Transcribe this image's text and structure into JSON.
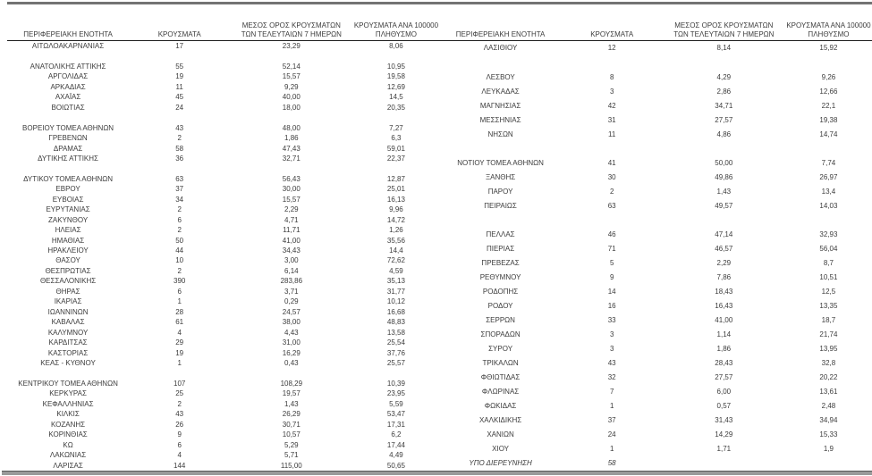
{
  "colors": {
    "top_divider": "#737373",
    "bottom_divider": "#9a9a9a",
    "header_rule": "#1c1c1c",
    "text": "#3c3c3c"
  },
  "headers": {
    "region": "ΠΕΡΙΦΕΡΕΙΑΚΗ ΕΝΟΤΗΤΑ",
    "cases": "ΚΡΟΥΣΜΑΤΑ",
    "avg7": "ΜΕΣΟΣ ΟΡΟΣ ΚΡΟΥΣΜΑΤΩΝ\nΤΩΝ ΤΕΛΕΥΤΑΙΩΝ 7 ΗΜΕΡΩΝ",
    "per100k": "ΚΡΟΥΣΜΑΤΑ ΑΝΑ 100000\nΠΛΗΘΥΣΜΟ"
  },
  "tables": [
    {
      "rows": [
        {
          "region": "ΑΙΤΩΛΟΑΚΑΡΝΑΝΙΑΣ",
          "cases": "17",
          "avg7": "23,29",
          "per100k": "8,06"
        },
        {
          "spacer": true
        },
        {
          "region": "ΑΝΑΤΟΛΙΚΗΣ ΑΤΤΙΚΗΣ",
          "cases": "55",
          "avg7": "52,14",
          "per100k": "10,95"
        },
        {
          "region": "ΑΡΓΟΛΙΔΑΣ",
          "cases": "19",
          "avg7": "15,57",
          "per100k": "19,58"
        },
        {
          "region": "ΑΡΚΑΔΙΑΣ",
          "cases": "11",
          "avg7": "9,29",
          "per100k": "12,69"
        },
        {
          "region": "ΑΧΑΪΑΣ",
          "cases": "45",
          "avg7": "40,00",
          "per100k": "14,5"
        },
        {
          "region": "ΒΟΙΩΤΙΑΣ",
          "cases": "24",
          "avg7": "18,00",
          "per100k": "20,35"
        },
        {
          "spacer": true
        },
        {
          "region": "ΒΟΡΕΙΟΥ ΤΟΜΕΑ ΑΘΗΝΩΝ",
          "cases": "43",
          "avg7": "48,00",
          "per100k": "7,27"
        },
        {
          "region": "ΓΡΕΒΕΝΩΝ",
          "cases": "2",
          "avg7": "1,86",
          "per100k": "6,3"
        },
        {
          "region": "ΔΡΑΜΑΣ",
          "cases": "58",
          "avg7": "47,43",
          "per100k": "59,01"
        },
        {
          "region": "ΔΥΤΙΚΗΣ ΑΤΤΙΚΗΣ",
          "cases": "36",
          "avg7": "32,71",
          "per100k": "22,37"
        },
        {
          "spacer": true
        },
        {
          "region": "ΔΥΤΙΚΟΥ ΤΟΜΕΑ ΑΘΗΝΩΝ",
          "cases": "63",
          "avg7": "56,43",
          "per100k": "12,87"
        },
        {
          "region": "ΕΒΡΟΥ",
          "cases": "37",
          "avg7": "30,00",
          "per100k": "25,01"
        },
        {
          "region": "ΕΥΒΟΙΑΣ",
          "cases": "34",
          "avg7": "15,57",
          "per100k": "16,13"
        },
        {
          "region": "ΕΥΡΥΤΑΝΙΑΣ",
          "cases": "2",
          "avg7": "2,29",
          "per100k": "9,96"
        },
        {
          "region": "ΖΑΚΥΝΘΟΥ",
          "cases": "6",
          "avg7": "4,71",
          "per100k": "14,72"
        },
        {
          "region": "ΗΛΕΙΑΣ",
          "cases": "2",
          "avg7": "11,71",
          "per100k": "1,26"
        },
        {
          "region": "ΗΜΑΘΙΑΣ",
          "cases": "50",
          "avg7": "41,00",
          "per100k": "35,56"
        },
        {
          "region": "ΗΡΑΚΛΕΙΟΥ",
          "cases": "44",
          "avg7": "34,43",
          "per100k": "14,4"
        },
        {
          "region": "ΘΑΣΟΥ",
          "cases": "10",
          "avg7": "3,00",
          "per100k": "72,62"
        },
        {
          "region": "ΘΕΣΠΡΩΤΙΑΣ",
          "cases": "2",
          "avg7": "6,14",
          "per100k": "4,59"
        },
        {
          "region": "ΘΕΣΣΑΛΟΝΙΚΗΣ",
          "cases": "390",
          "avg7": "283,86",
          "per100k": "35,13"
        },
        {
          "region": "ΘΗΡΑΣ",
          "cases": "6",
          "avg7": "3,71",
          "per100k": "31,77"
        },
        {
          "region": "ΙΚΑΡΙΑΣ",
          "cases": "1",
          "avg7": "0,29",
          "per100k": "10,12"
        },
        {
          "region": "ΙΩΑΝΝΙΝΩΝ",
          "cases": "28",
          "avg7": "24,57",
          "per100k": "16,68"
        },
        {
          "region": "ΚΑΒΑΛΑΣ",
          "cases": "61",
          "avg7": "38,00",
          "per100k": "48,83"
        },
        {
          "region": "ΚΑΛΥΜΝΟΥ",
          "cases": "4",
          "avg7": "4,43",
          "per100k": "13,58"
        },
        {
          "region": "ΚΑΡΔΙΤΣΑΣ",
          "cases": "29",
          "avg7": "31,00",
          "per100k": "25,54"
        },
        {
          "region": "ΚΑΣΤΟΡΙΑΣ",
          "cases": "19",
          "avg7": "16,29",
          "per100k": "37,76"
        },
        {
          "region": "ΚΕΑΣ - ΚΥΘΝΟΥ",
          "cases": "1",
          "avg7": "0,43",
          "per100k": "25,57"
        },
        {
          "spacer": true
        },
        {
          "region": "ΚΕΝΤΡΙΚΟΥ ΤΟΜΕΑ ΑΘΗΝΩΝ",
          "cases": "107",
          "avg7": "108,29",
          "per100k": "10,39"
        },
        {
          "region": "ΚΕΡΚΥΡΑΣ",
          "cases": "25",
          "avg7": "19,57",
          "per100k": "23,95"
        },
        {
          "region": "ΚΕΦΑΛΛΗΝΙΑΣ",
          "cases": "2",
          "avg7": "1,43",
          "per100k": "5,59"
        },
        {
          "region": "ΚΙΛΚΙΣ",
          "cases": "43",
          "avg7": "26,29",
          "per100k": "53,47"
        },
        {
          "region": "ΚΟΖΑΝΗΣ",
          "cases": "26",
          "avg7": "30,71",
          "per100k": "17,31"
        },
        {
          "region": "ΚΟΡΙΝΘΙΑΣ",
          "cases": "9",
          "avg7": "10,57",
          "per100k": "6,2"
        },
        {
          "region": "ΚΩ",
          "cases": "6",
          "avg7": "5,29",
          "per100k": "17,44"
        },
        {
          "region": "ΛΑΚΩΝΙΑΣ",
          "cases": "4",
          "avg7": "5,71",
          "per100k": "4,49"
        },
        {
          "region": "ΛΑΡΙΣΑΣ",
          "cases": "144",
          "avg7": "115,00",
          "per100k": "50,65"
        }
      ]
    },
    {
      "rows": [
        {
          "region": "ΛΑΣΙΘΙΟΥ",
          "cases": "12",
          "avg7": "8,14",
          "per100k": "15,92"
        },
        {
          "spacer": true
        },
        {
          "region": "ΛΕΣΒΟΥ",
          "cases": "8",
          "avg7": "4,29",
          "per100k": "9,26"
        },
        {
          "region": "ΛΕΥΚΑΔΑΣ",
          "cases": "3",
          "avg7": "2,86",
          "per100k": "12,66"
        },
        {
          "region": "ΜΑΓΝΗΣΙΑΣ",
          "cases": "42",
          "avg7": "34,71",
          "per100k": "22,1"
        },
        {
          "region": "ΜΕΣΣΗΝΙΑΣ",
          "cases": "31",
          "avg7": "27,57",
          "per100k": "19,38"
        },
        {
          "region": "ΝΗΣΩΝ",
          "cases": "11",
          "avg7": "4,86",
          "per100k": "14,74"
        },
        {
          "spacer": true
        },
        {
          "region": "ΝΟΤΙΟΥ ΤΟΜΕΑ ΑΘΗΝΩΝ",
          "cases": "41",
          "avg7": "50,00",
          "per100k": "7,74"
        },
        {
          "region": "ΞΑΝΘΗΣ",
          "cases": "30",
          "avg7": "49,86",
          "per100k": "26,97"
        },
        {
          "region": "ΠΑΡΟΥ",
          "cases": "2",
          "avg7": "1,43",
          "per100k": "13,4"
        },
        {
          "region": "ΠΕΙΡΑΙΩΣ",
          "cases": "63",
          "avg7": "49,57",
          "per100k": "14,03"
        },
        {
          "spacer": true
        },
        {
          "region": "ΠΕΛΛΑΣ",
          "cases": "46",
          "avg7": "47,14",
          "per100k": "32,93"
        },
        {
          "region": "ΠΙΕΡΙΑΣ",
          "cases": "71",
          "avg7": "46,57",
          "per100k": "56,04"
        },
        {
          "region": "ΠΡΕΒΕΖΑΣ",
          "cases": "5",
          "avg7": "2,29",
          "per100k": "8,7"
        },
        {
          "region": "ΡΕΘΥΜΝΟΥ",
          "cases": "9",
          "avg7": "7,86",
          "per100k": "10,51"
        },
        {
          "region": "ΡΟΔΟΠΗΣ",
          "cases": "14",
          "avg7": "18,43",
          "per100k": "12,5"
        },
        {
          "region": "ΡΟΔΟΥ",
          "cases": "16",
          "avg7": "16,43",
          "per100k": "13,35"
        },
        {
          "region": "ΣΕΡΡΩΝ",
          "cases": "33",
          "avg7": "41,00",
          "per100k": "18,7"
        },
        {
          "region": "ΣΠΟΡΑΔΩΝ",
          "cases": "3",
          "avg7": "1,14",
          "per100k": "21,74"
        },
        {
          "region": "ΣΥΡΟΥ",
          "cases": "3",
          "avg7": "1,86",
          "per100k": "13,95"
        },
        {
          "region": "ΤΡΙΚΑΛΩΝ",
          "cases": "43",
          "avg7": "28,43",
          "per100k": "32,8"
        },
        {
          "region": "ΦΘΙΩΤΙΔΑΣ",
          "cases": "32",
          "avg7": "27,57",
          "per100k": "20,22"
        },
        {
          "region": "ΦΛΩΡΙΝΑΣ",
          "cases": "7",
          "avg7": "6,00",
          "per100k": "13,61"
        },
        {
          "region": "ΦΩΚΙΔΑΣ",
          "cases": "1",
          "avg7": "0,57",
          "per100k": "2,48"
        },
        {
          "region": "ΧΑΛΚΙΔΙΚΗΣ",
          "cases": "37",
          "avg7": "31,43",
          "per100k": "34,94"
        },
        {
          "region": "ΧΑΝΙΩΝ",
          "cases": "24",
          "avg7": "14,29",
          "per100k": "15,33"
        },
        {
          "region": "ΧΙΟΥ",
          "cases": "1",
          "avg7": "1,71",
          "per100k": "1,9"
        },
        {
          "region": "ΥΠΟ ΔΙΕΡΕΥΝΗΣΗ",
          "cases": "58",
          "avg7": "",
          "per100k": "",
          "italic": true
        }
      ]
    }
  ]
}
